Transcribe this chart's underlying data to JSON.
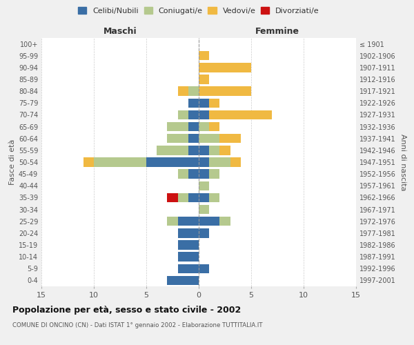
{
  "age_groups": [
    "100+",
    "95-99",
    "90-94",
    "85-89",
    "80-84",
    "75-79",
    "70-74",
    "65-69",
    "60-64",
    "55-59",
    "50-54",
    "45-49",
    "40-44",
    "35-39",
    "30-34",
    "25-29",
    "20-24",
    "15-19",
    "10-14",
    "5-9",
    "0-4"
  ],
  "birth_years": [
    "≤ 1901",
    "1902-1906",
    "1907-1911",
    "1912-1916",
    "1917-1921",
    "1922-1926",
    "1927-1931",
    "1932-1936",
    "1937-1941",
    "1942-1946",
    "1947-1951",
    "1952-1956",
    "1957-1961",
    "1962-1966",
    "1967-1971",
    "1972-1976",
    "1977-1981",
    "1982-1986",
    "1987-1991",
    "1992-1996",
    "1997-2001"
  ],
  "colors": {
    "celibi": "#3a6ea5",
    "coniugati": "#b5c98e",
    "vedovi": "#f0b942",
    "divorziati": "#cc1111"
  },
  "maschi": {
    "celibi": [
      0,
      0,
      0,
      0,
      0,
      1,
      1,
      1,
      1,
      1,
      5,
      1,
      0,
      1,
      0,
      2,
      2,
      2,
      2,
      2,
      3
    ],
    "coniugati": [
      0,
      0,
      0,
      0,
      1,
      0,
      1,
      2,
      2,
      3,
      5,
      1,
      0,
      1,
      0,
      1,
      0,
      0,
      0,
      0,
      0
    ],
    "vedovi": [
      0,
      0,
      0,
      0,
      1,
      0,
      0,
      0,
      0,
      0,
      1,
      0,
      0,
      0,
      0,
      0,
      0,
      0,
      0,
      0,
      0
    ],
    "divorziati": [
      0,
      0,
      0,
      0,
      0,
      0,
      0,
      0,
      0,
      0,
      0,
      0,
      0,
      1,
      0,
      0,
      0,
      0,
      0,
      0,
      0
    ]
  },
  "femmine": {
    "celibi": [
      0,
      0,
      0,
      0,
      0,
      1,
      1,
      0,
      0,
      1,
      1,
      1,
      0,
      1,
      0,
      2,
      1,
      0,
      0,
      1,
      0
    ],
    "coniugati": [
      0,
      0,
      0,
      0,
      0,
      0,
      0,
      1,
      2,
      1,
      2,
      1,
      1,
      1,
      1,
      1,
      0,
      0,
      0,
      0,
      0
    ],
    "vedovi": [
      0,
      1,
      5,
      1,
      5,
      1,
      6,
      1,
      2,
      1,
      1,
      0,
      0,
      0,
      0,
      0,
      0,
      0,
      0,
      0,
      0
    ],
    "divorziati": [
      0,
      0,
      0,
      0,
      0,
      0,
      0,
      0,
      0,
      0,
      0,
      0,
      0,
      0,
      0,
      0,
      0,
      0,
      0,
      0,
      0
    ]
  },
  "title": "Popolazione per età, sesso e stato civile - 2002",
  "subtitle": "COMUNE DI ONCINO (CN) - Dati ISTAT 1° gennaio 2002 - Elaborazione TUTTITALIA.IT",
  "ylabel": "Fasce di età",
  "ylabel_right": "Anni di nascita",
  "xlabel_left": "Maschi",
  "xlabel_right": "Femmine",
  "xlim": 15,
  "legend_labels": [
    "Celibi/Nubili",
    "Coniugati/e",
    "Vedovi/e",
    "Divorziati/e"
  ],
  "bg_color": "#f0f0f0",
  "plot_bg_color": "#ffffff"
}
